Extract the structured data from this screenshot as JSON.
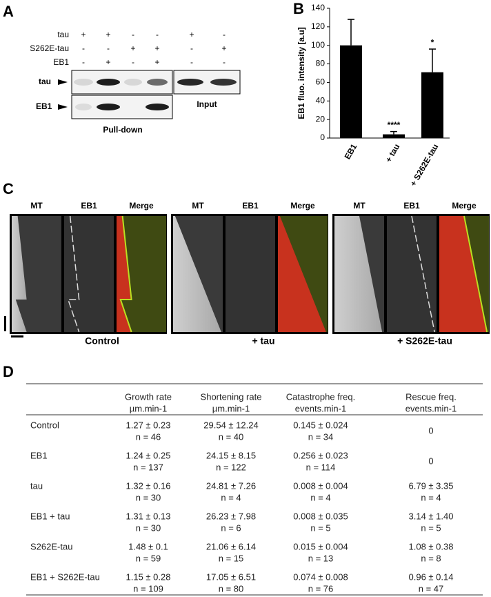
{
  "panel_labels": [
    "A",
    "B",
    "C",
    "D"
  ],
  "blot": {
    "conditions": [
      {
        "name": "tau",
        "marks": [
          "+",
          "+",
          "-",
          "-",
          "+",
          "-"
        ]
      },
      {
        "name": "S262E-tau",
        "marks": [
          "-",
          "-",
          "+",
          "+",
          "-",
          "+"
        ]
      },
      {
        "name": "EB1",
        "marks": [
          "-",
          "+",
          "-",
          "+",
          "-",
          "-"
        ]
      }
    ],
    "bands": [
      "tau",
      "EB1"
    ],
    "pulldown_label": "Pull-down",
    "input_label": "Input"
  },
  "chart_data": {
    "type": "bar",
    "ylabel": "EB1 fluo. intensity  [a.u]",
    "categories": [
      "EB1",
      "+ tau",
      "+ S262E-tau"
    ],
    "values": [
      100,
      4,
      71
    ],
    "errors": [
      28,
      3,
      25
    ],
    "annotations": [
      {
        "text": "****",
        "category": "+ tau"
      },
      {
        "text": "*",
        "category": "+ S262E-tau"
      }
    ],
    "color": "#000000",
    "ylim": [
      0,
      140
    ],
    "yticks": [
      0,
      20,
      40,
      60,
      80,
      100,
      120,
      140
    ]
  },
  "kymographs": {
    "channels": [
      "MT",
      "EB1",
      "Merge"
    ],
    "conditions": [
      "Control",
      "+ tau",
      "+ S262E-tau"
    ]
  },
  "table": {
    "header": [
      [
        "Growth rate",
        "µm.min-1"
      ],
      [
        "Shortening rate",
        "µm.min-1"
      ],
      [
        "Catastrophe freq.",
        "events.min-1"
      ],
      [
        "Rescue freq.",
        "events.min-1"
      ]
    ],
    "rows": [
      {
        "label": "Control",
        "cells": [
          [
            "1.27 ± 0.23",
            "n = 46"
          ],
          [
            "29.54 ± 12.24",
            "n = 40"
          ],
          [
            "0.145 ± 0.024",
            "n = 34"
          ],
          [
            "0"
          ]
        ]
      },
      {
        "label": "EB1",
        "cells": [
          [
            "1.24 ±  0.25",
            "n = 137"
          ],
          [
            "24.15 ± 8.15",
            "n = 122"
          ],
          [
            "0.256 ± 0.023",
            "n = 114"
          ],
          [
            "0"
          ]
        ]
      },
      {
        "label": "tau",
        "cells": [
          [
            "1.32 ± 0.16",
            "n = 30"
          ],
          [
            "24.81 ± 7.26",
            "n = 4"
          ],
          [
            "0.008 ± 0.004",
            "n = 4"
          ],
          [
            "6.79 ± 3.35",
            "n = 4"
          ]
        ]
      },
      {
        "label": "EB1 + tau",
        "cells": [
          [
            "1.31 ± 0.13",
            "n = 30"
          ],
          [
            "26.23 ± 7.98",
            "n = 6"
          ],
          [
            "0.008 ± 0.035",
            "n = 5"
          ],
          [
            "3.14 ± 1.40",
            "n = 5"
          ]
        ]
      },
      {
        "label": "S262E-tau",
        "cells": [
          [
            "1.48 ± 0.1",
            "n = 59"
          ],
          [
            "21.06 ± 6.14",
            "n = 15"
          ],
          [
            "0.015 ± 0.004",
            "n = 13"
          ],
          [
            "1.08 ± 0.38",
            "n = 8"
          ]
        ]
      },
      {
        "label": "EB1 + S262E-tau",
        "cells": [
          [
            "1.15 ± 0.28",
            "n = 109"
          ],
          [
            "17.05 ± 6.51",
            "n = 80"
          ],
          [
            "0.074 ± 0.008",
            "n = 76"
          ],
          [
            "0.96 ± 0.14",
            "n = 47"
          ]
        ]
      }
    ]
  }
}
